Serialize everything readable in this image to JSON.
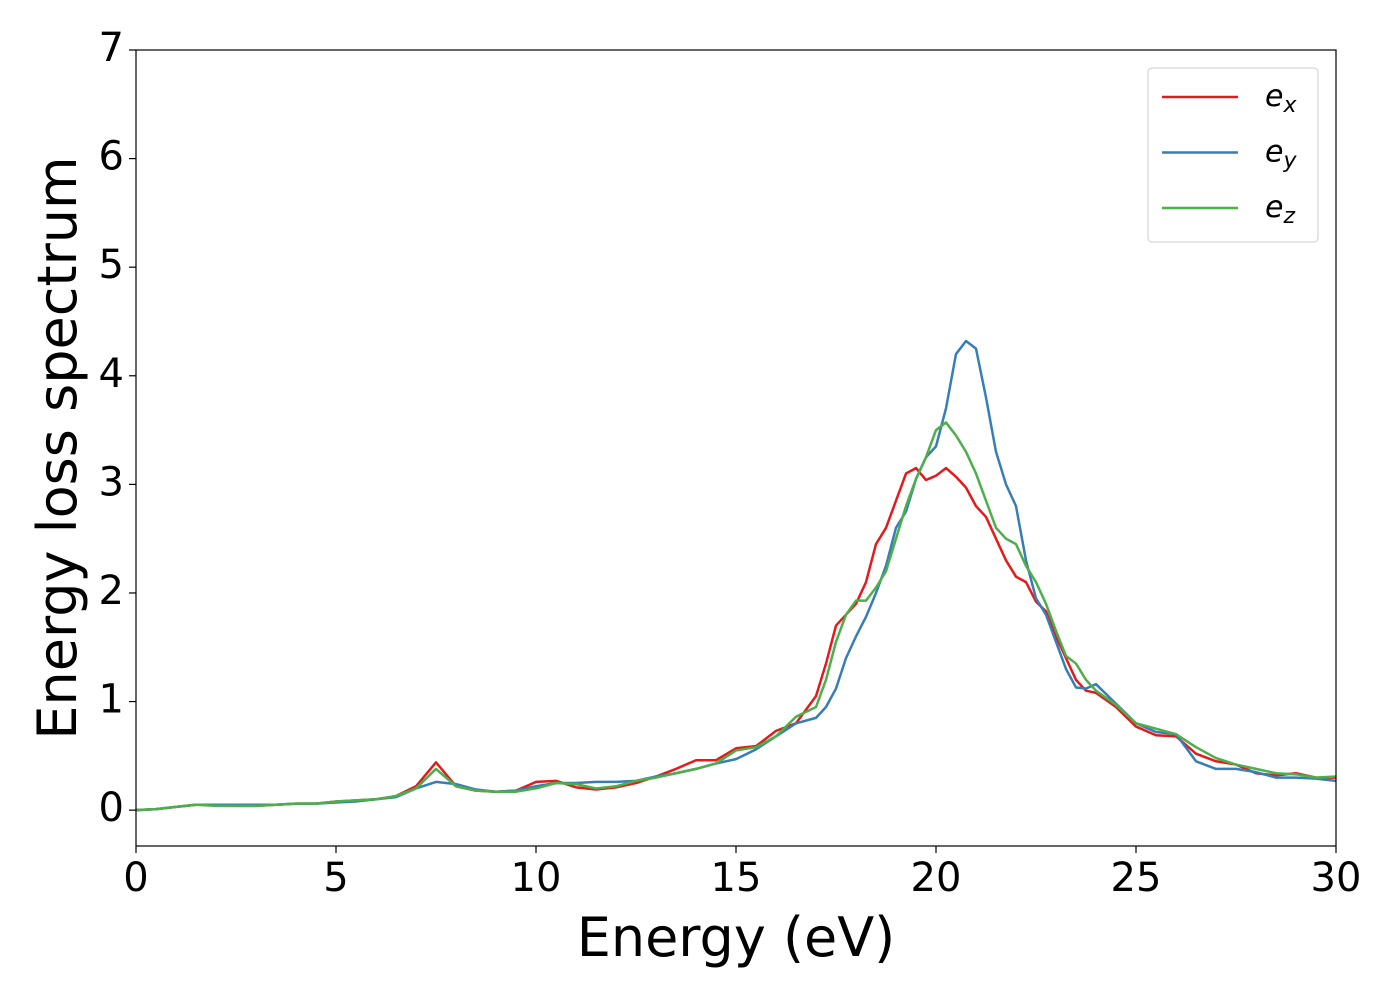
{
  "chart_data": {
    "type": "line",
    "xlabel": "Energy (eV)",
    "ylabel": "Energy loss spectrum",
    "x": [
      0,
      0.5,
      1,
      1.5,
      2,
      2.5,
      3,
      3.5,
      4,
      4.5,
      5,
      5.5,
      6,
      6.5,
      7,
      7.5,
      8,
      8.5,
      9,
      9.5,
      10,
      10.5,
      11,
      11.5,
      12,
      12.5,
      13,
      13.5,
      14,
      14.5,
      15,
      15.5,
      16,
      16.5,
      17,
      17.25,
      17.5,
      17.75,
      18,
      18.25,
      18.5,
      18.75,
      19,
      19.25,
      19.5,
      19.75,
      20,
      20.25,
      20.5,
      20.75,
      21,
      21.25,
      21.5,
      21.75,
      22,
      22.25,
      22.5,
      22.75,
      23,
      23.25,
      23.5,
      23.75,
      24,
      24.5,
      25,
      25.5,
      26,
      26.5,
      27,
      27.5,
      28,
      28.5,
      29,
      29.5,
      30
    ],
    "series": [
      {
        "name": "ex",
        "color": "#e41a1c",
        "values": [
          0,
          0.01,
          0.03,
          0.05,
          0.05,
          0.04,
          0.04,
          0.05,
          0.06,
          0.06,
          0.08,
          0.09,
          0.1,
          0.13,
          0.22,
          0.44,
          0.22,
          0.18,
          0.17,
          0.18,
          0.26,
          0.27,
          0.21,
          0.19,
          0.21,
          0.25,
          0.31,
          0.38,
          0.46,
          0.46,
          0.57,
          0.59,
          0.73,
          0.8,
          1.05,
          1.35,
          1.7,
          1.8,
          1.9,
          2.1,
          2.45,
          2.6,
          2.85,
          3.1,
          3.15,
          3.04,
          3.08,
          3.15,
          3.07,
          2.97,
          2.8,
          2.7,
          2.5,
          2.3,
          2.15,
          2.1,
          1.92,
          1.83,
          1.6,
          1.4,
          1.2,
          1.1,
          1.08,
          0.95,
          0.77,
          0.69,
          0.68,
          0.52,
          0.45,
          0.42,
          0.34,
          0.32,
          0.34,
          0.3,
          0.3
        ]
      },
      {
        "name": "ey",
        "color": "#377eb8",
        "values": [
          0,
          0.01,
          0.03,
          0.05,
          0.05,
          0.05,
          0.05,
          0.05,
          0.06,
          0.06,
          0.07,
          0.08,
          0.1,
          0.12,
          0.2,
          0.26,
          0.24,
          0.19,
          0.17,
          0.18,
          0.22,
          0.25,
          0.25,
          0.26,
          0.26,
          0.27,
          0.31,
          0.34,
          0.38,
          0.43,
          0.47,
          0.56,
          0.68,
          0.8,
          0.85,
          0.95,
          1.12,
          1.4,
          1.6,
          1.78,
          2.0,
          2.25,
          2.6,
          2.75,
          3.05,
          3.25,
          3.35,
          3.7,
          4.2,
          4.32,
          4.25,
          3.8,
          3.3,
          3.0,
          2.8,
          2.3,
          1.95,
          1.8,
          1.55,
          1.3,
          1.13,
          1.12,
          1.16,
          0.98,
          0.8,
          0.72,
          0.7,
          0.45,
          0.38,
          0.38,
          0.35,
          0.3,
          0.3,
          0.29,
          0.27
        ]
      },
      {
        "name": "ez",
        "color": "#4daf4a",
        "values": [
          0,
          0.01,
          0.03,
          0.05,
          0.04,
          0.04,
          0.04,
          0.05,
          0.06,
          0.06,
          0.08,
          0.09,
          0.1,
          0.13,
          0.2,
          0.38,
          0.22,
          0.18,
          0.17,
          0.17,
          0.2,
          0.25,
          0.24,
          0.2,
          0.22,
          0.27,
          0.3,
          0.34,
          0.38,
          0.43,
          0.55,
          0.58,
          0.68,
          0.86,
          0.95,
          1.2,
          1.55,
          1.8,
          1.93,
          1.93,
          2.05,
          2.2,
          2.5,
          2.8,
          3.05,
          3.25,
          3.5,
          3.57,
          3.45,
          3.3,
          3.1,
          2.85,
          2.6,
          2.5,
          2.45,
          2.25,
          2.1,
          1.9,
          1.65,
          1.42,
          1.35,
          1.2,
          1.1,
          0.97,
          0.8,
          0.75,
          0.7,
          0.58,
          0.48,
          0.42,
          0.38,
          0.34,
          0.33,
          0.3,
          0.31
        ]
      }
    ],
    "xlim": [
      0,
      30
    ],
    "xticks": [
      0,
      5,
      10,
      15,
      20,
      25,
      30
    ],
    "ylim": [
      -0.33,
      7
    ],
    "yticks": [
      0,
      1,
      2,
      3,
      4,
      5,
      6,
      7
    ],
    "grid": false,
    "legend": "upper right"
  }
}
